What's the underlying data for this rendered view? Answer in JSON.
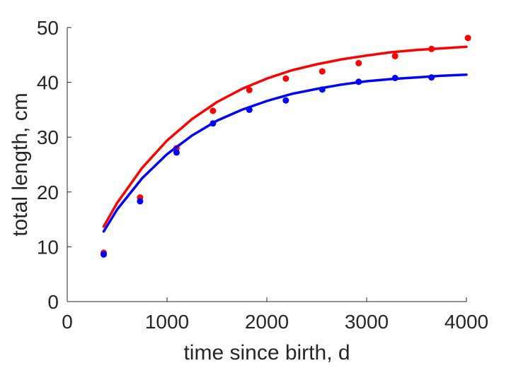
{
  "chart_data": {
    "type": "scatter",
    "title": "",
    "xlabel": "time since birth, d",
    "ylabel": "total length, cm",
    "xlim": [
      0,
      4000
    ],
    "ylim": [
      0,
      50
    ],
    "xticks": [
      0,
      1000,
      2000,
      3000,
      4000
    ],
    "yticks": [
      0,
      10,
      20,
      30,
      40,
      50
    ],
    "xtick_labels": [
      "0",
      "1000",
      "2000",
      "3000",
      "4000"
    ],
    "ytick_labels": [
      "0",
      "10",
      "20",
      "30",
      "40",
      "50"
    ],
    "grid": false,
    "legend": "none",
    "series": [
      {
        "color": "#ff0000",
        "points": {
          "x": [
            365,
            730,
            1095,
            1460,
            1825,
            2190,
            2555,
            2920,
            3285,
            3650,
            4015
          ],
          "y": [
            8.9,
            19.0,
            28.0,
            34.8,
            38.6,
            40.7,
            42.0,
            43.5,
            44.8,
            46.1,
            48.1
          ]
        },
        "fit_curve": {
          "x": [
            365,
            500,
            750,
            1000,
            1250,
            1500,
            1750,
            2000,
            2250,
            2500,
            2750,
            3000,
            3250,
            3500,
            3750,
            4000
          ],
          "y": [
            13.7,
            18.0,
            24.4,
            29.4,
            33.3,
            36.4,
            38.8,
            40.7,
            42.2,
            43.3,
            44.2,
            44.9,
            45.5,
            45.9,
            46.2,
            46.5
          ]
        }
      },
      {
        "color": "#0000ff",
        "points": {
          "x": [
            365,
            730,
            1095,
            1460,
            1825,
            2190,
            2555,
            2920,
            3285,
            3650
          ],
          "y": [
            8.6,
            18.3,
            27.2,
            32.5,
            35.0,
            36.7,
            38.7,
            40.1,
            40.8,
            40.9
          ]
        },
        "fit_curve": {
          "x": [
            365,
            500,
            750,
            1000,
            1250,
            1500,
            1750,
            2000,
            2250,
            2500,
            2750,
            3000,
            3250,
            3500,
            3750,
            4000
          ],
          "y": [
            12.8,
            16.8,
            22.5,
            26.9,
            30.3,
            33.0,
            35.0,
            36.6,
            37.9,
            38.8,
            39.6,
            40.2,
            40.6,
            40.9,
            41.2,
            41.4
          ]
        }
      }
    ]
  }
}
